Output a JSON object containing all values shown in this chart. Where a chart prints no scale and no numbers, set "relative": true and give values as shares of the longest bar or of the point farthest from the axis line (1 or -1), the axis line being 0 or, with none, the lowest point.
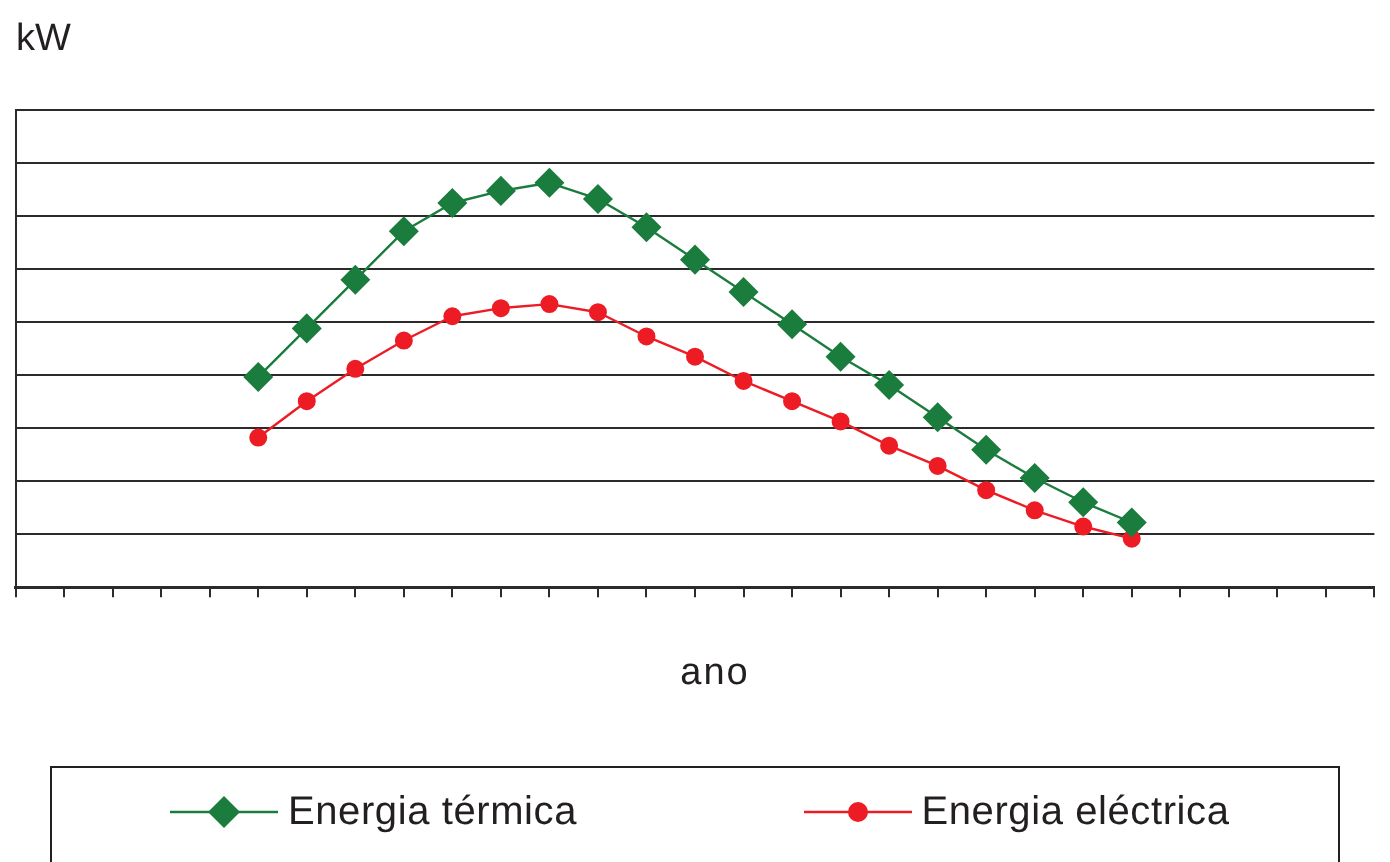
{
  "chart_data": {
    "type": "line",
    "ylabel": "kW",
    "xlabel": "ano",
    "relative": true,
    "grid": "y",
    "legend": "bottom",
    "categories": [
      null,
      null,
      null,
      null,
      null,
      null,
      null,
      null,
      null,
      null,
      null,
      null,
      null,
      null,
      null,
      null,
      null,
      null,
      null,
      null,
      null,
      null,
      null,
      null,
      null,
      null,
      null,
      null,
      null
    ],
    "series": [
      {
        "name": "Energia térmica",
        "color": "#1b7d3d",
        "marker": "diamond",
        "values": [
          null,
          null,
          null,
          null,
          null,
          0.52,
          0.64,
          0.76,
          0.88,
          0.95,
          0.98,
          1,
          0.96,
          0.89,
          0.81,
          0.73,
          0.65,
          0.57,
          0.5,
          0.42,
          0.34,
          0.27,
          0.21,
          0.16,
          null,
          null,
          null,
          null,
          null
        ]
      },
      {
        "name": "Energia eléctrica",
        "color": "#ed1c24",
        "marker": "circle",
        "values": [
          null,
          null,
          null,
          null,
          null,
          0.37,
          0.46,
          0.54,
          0.61,
          0.67,
          0.69,
          0.7,
          0.68,
          0.62,
          0.57,
          0.51,
          0.46,
          0.41,
          0.35,
          0.3,
          0.24,
          0.19,
          0.15,
          0.12,
          null,
          null,
          null,
          null,
          null
        ]
      }
    ]
  }
}
